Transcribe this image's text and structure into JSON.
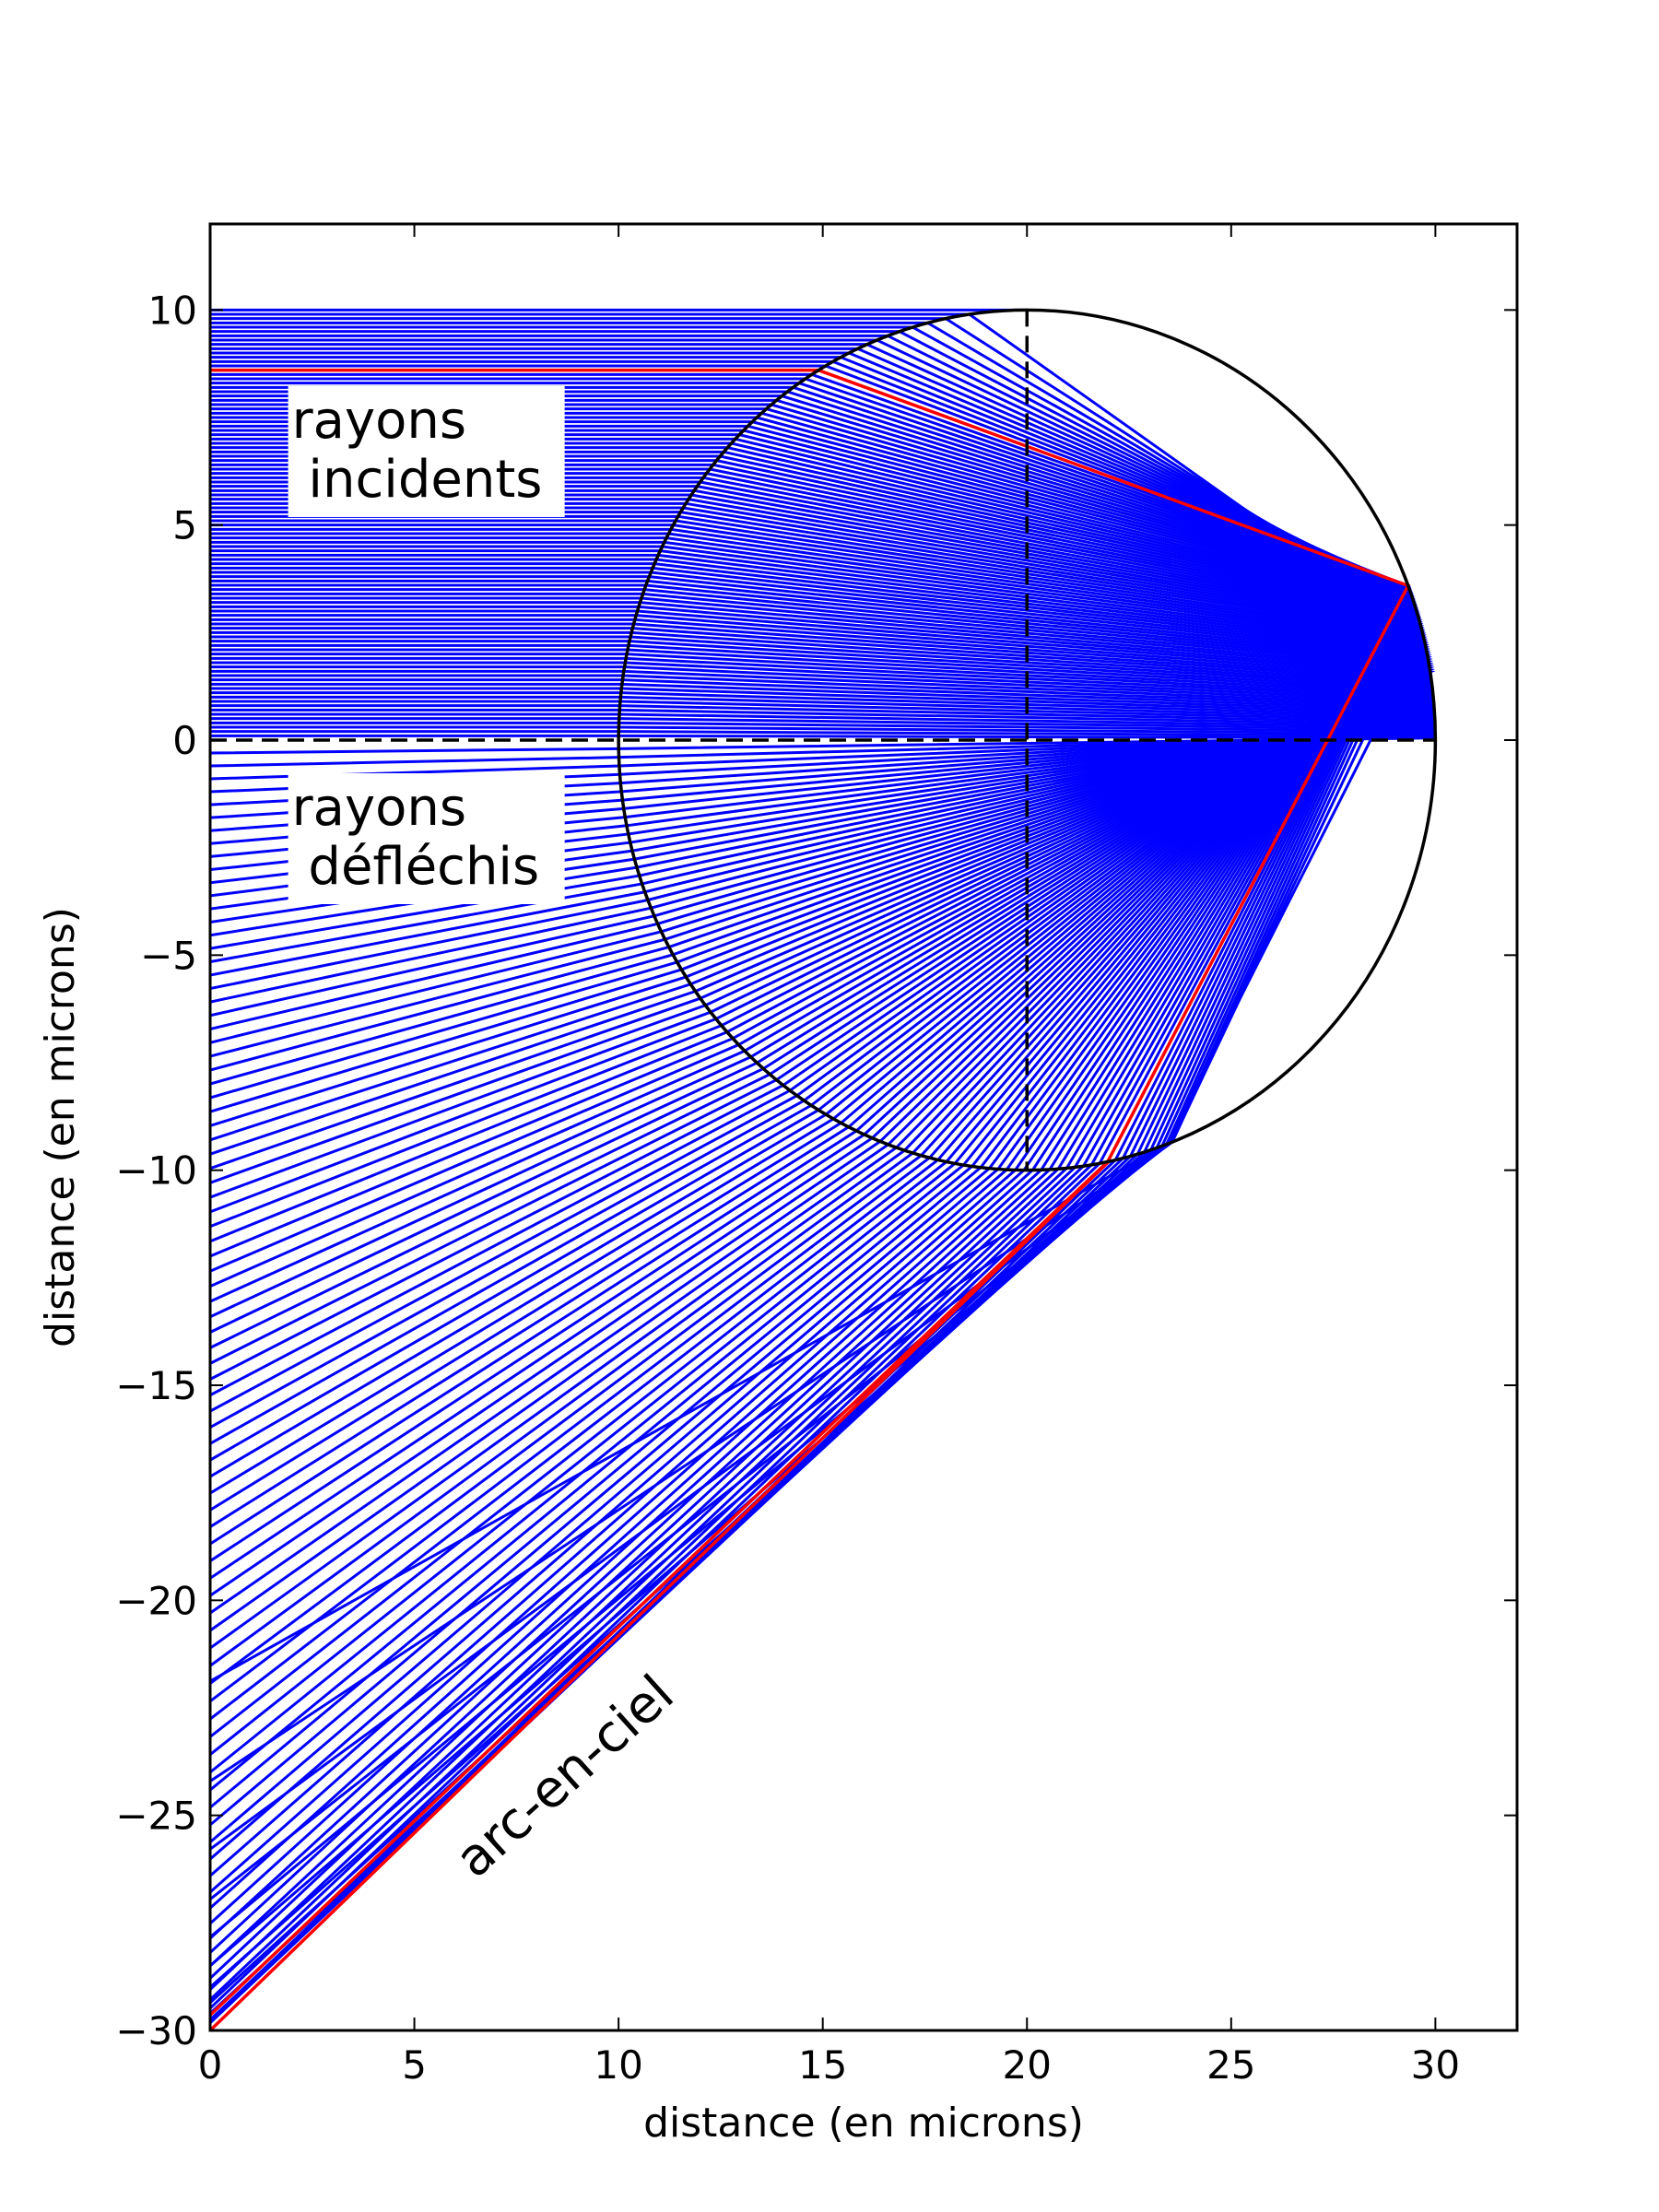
{
  "chart_data": {
    "type": "line",
    "title": "",
    "xlabel": "distance (en microns)",
    "ylabel": "distance (en microns)",
    "xlim": [
      0,
      32
    ],
    "ylim": [
      -30,
      12
    ],
    "xticks": [
      0,
      5,
      10,
      15,
      20,
      25,
      30
    ],
    "yticks": [
      10,
      5,
      0,
      -5,
      -10,
      -15,
      -20,
      -25,
      -30
    ],
    "grid": false,
    "droplet": {
      "center": [
        20,
        0
      ],
      "radius": 10
    },
    "refractive_index": 1.333,
    "impact_parameters": {
      "start": 0.1,
      "stop": 10.0,
      "step": 0.1
    },
    "highlight_impact_parameter": 8.6,
    "ray_colors": {
      "normal": "#0000ff",
      "highlight": "#ff0000",
      "droplet": "#000000",
      "guide": "#000000"
    },
    "guides": {
      "horizontal_axis_y": 0,
      "vertical_axis_x": 20
    },
    "annotations": [
      {
        "id": "incident",
        "lines": [
          "rayons",
          " incidents"
        ],
        "x": 2.0,
        "y": 6.0
      },
      {
        "id": "deflected",
        "lines": [
          "rayons",
          " défléchis"
        ],
        "x": 2.0,
        "y": -3.0
      },
      {
        "id": "rainbow",
        "text": "arc-en-ciel",
        "x": 6.5,
        "y": -26.5,
        "rotation_deg": -42
      }
    ],
    "rainbow_line": {
      "from": [
        0,
        -30
      ],
      "to": [
        22.0,
        -9.8
      ]
    }
  }
}
